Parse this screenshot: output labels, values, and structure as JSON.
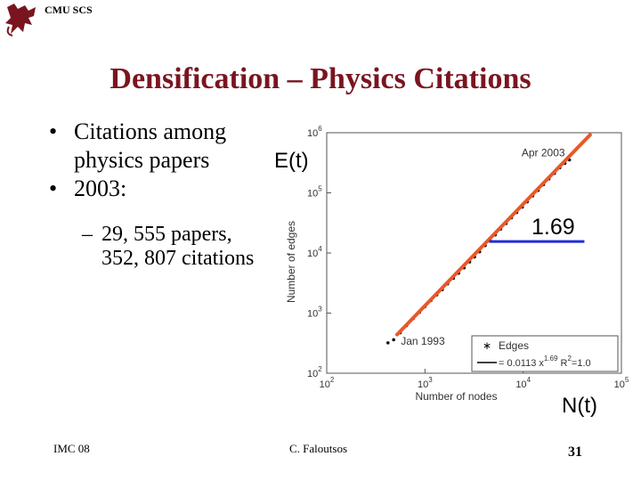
{
  "header": {
    "org": "CMU SCS"
  },
  "slide": {
    "title": "Densification – Physics Citations",
    "bullets": [
      {
        "line1": "Citations among",
        "line2": "physics papers"
      },
      {
        "line1": "2003:"
      }
    ],
    "sub_bullets": {
      "line1": "29, 555 papers,",
      "line2": "352, 807 citations"
    },
    "bullet_symbol": "•",
    "dash_symbol": "–",
    "annotations": {
      "et": "E(t)",
      "exponent": "1.69",
      "nt": "N(t)"
    }
  },
  "footer": {
    "left": "IMC 08",
    "center": "C. Faloutsos",
    "page": "31"
  },
  "colors": {
    "title": "#7a1520",
    "fit_line": "#e8582a",
    "exponent_line": "#1f2cd8"
  },
  "chart_data": {
    "type": "scatter",
    "x_scale": "log",
    "y_scale": "log",
    "xlim": [
      100,
      100000
    ],
    "ylim": [
      100,
      1000000
    ],
    "xlabel": "Number of nodes",
    "ylabel": "Number of edges",
    "x_ticks": [
      {
        "value": 100,
        "base": "10",
        "exp": "2"
      },
      {
        "value": 1000,
        "base": "10",
        "exp": "3"
      },
      {
        "value": 10000,
        "base": "10",
        "exp": "4"
      },
      {
        "value": 100000,
        "base": "10",
        "exp": "5"
      }
    ],
    "y_ticks": [
      {
        "value": 100,
        "base": "10",
        "exp": "2"
      },
      {
        "value": 1000,
        "base": "10",
        "exp": "3"
      },
      {
        "value": 10000,
        "base": "10",
        "exp": "4"
      },
      {
        "value": 100000,
        "base": "10",
        "exp": "5"
      },
      {
        "value": 1000000,
        "base": "10",
        "exp": "6"
      }
    ],
    "annotations": [
      {
        "text": "Jan 1993",
        "x": 700,
        "y": 500
      },
      {
        "text": "Apr 2003",
        "x": 29555,
        "y": 352807
      }
    ],
    "legend": {
      "position": "bottom-right",
      "items": [
        {
          "label": "Edges",
          "marker": "*"
        },
        {
          "label_main": "= 0.0113 x",
          "label_sup": "1.69",
          "label_r": " R",
          "label_r_sup": "2",
          "label_end": "=1.0"
        }
      ]
    },
    "fit": {
      "coef": 0.0113,
      "exponent": 1.69
    },
    "series": [
      {
        "name": "Edges",
        "points": [
          [
            420,
            320
          ],
          [
            480,
            360
          ],
          [
            560,
            470
          ],
          [
            650,
            620
          ],
          [
            760,
            810
          ],
          [
            880,
            1030
          ],
          [
            1000,
            1280
          ],
          [
            1150,
            1620
          ],
          [
            1320,
            2010
          ],
          [
            1500,
            2450
          ],
          [
            1700,
            3070
          ],
          [
            1950,
            3800
          ],
          [
            2200,
            4600
          ],
          [
            2500,
            5650
          ],
          [
            2850,
            7100
          ],
          [
            3200,
            8600
          ],
          [
            3600,
            10500
          ],
          [
            4100,
            13300
          ],
          [
            4600,
            16300
          ],
          [
            5200,
            20000
          ],
          [
            5900,
            25000
          ],
          [
            6700,
            31000
          ],
          [
            7600,
            38500
          ],
          [
            8600,
            47000
          ],
          [
            9800,
            58000
          ],
          [
            11000,
            71000
          ],
          [
            12500,
            89000
          ],
          [
            14200,
            110000
          ],
          [
            16100,
            137000
          ],
          [
            18300,
            171000
          ],
          [
            20800,
            211000
          ],
          [
            23600,
            262000
          ],
          [
            26600,
            310000
          ],
          [
            29555,
            352807
          ]
        ]
      }
    ]
  }
}
